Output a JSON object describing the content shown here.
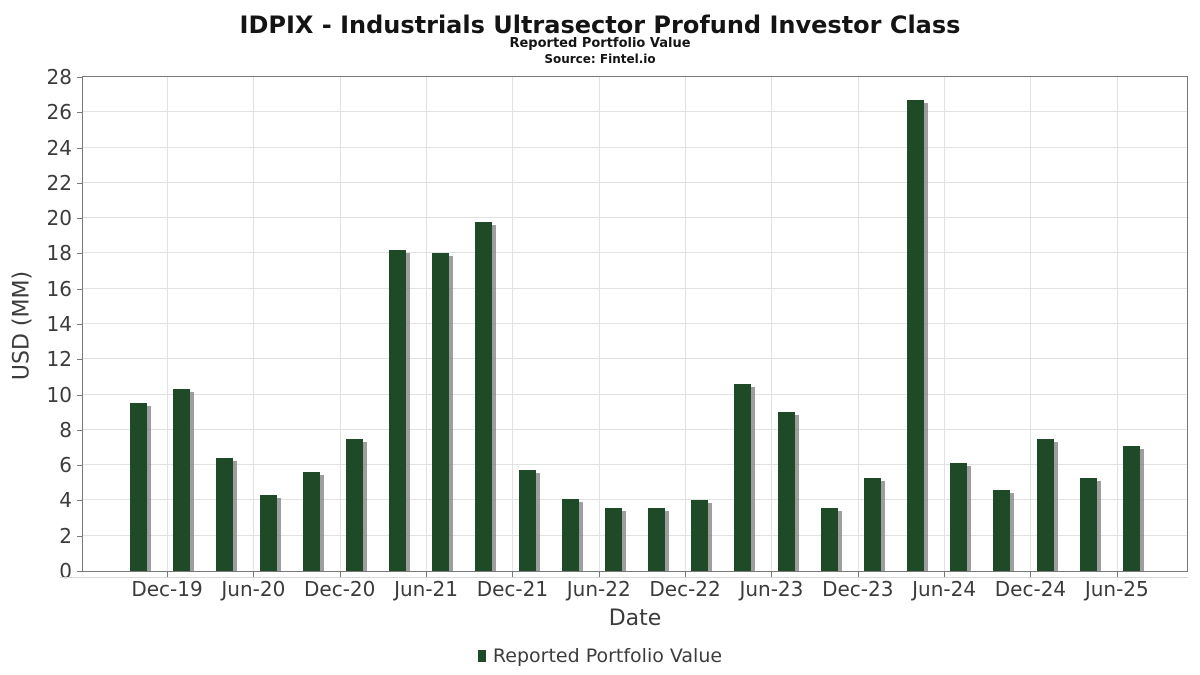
{
  "header": {
    "title": "IDPIX - Industrials Ultrasector Profund Investor Class",
    "subtitle": "Reported Portfolio Value",
    "source": "Source: Fintel.io"
  },
  "axes": {
    "xlabel": "Date",
    "ylabel": "USD (MM)"
  },
  "legend": {
    "label": "Reported Portfolio Value"
  },
  "colors": {
    "bar": "#1e4a27",
    "bar_shadow": "#7d7d7d",
    "grid": "#e2e2e2",
    "spine": "#787878",
    "tick_text": "#3c3c3c",
    "title_text": "#141414"
  },
  "chart_data": {
    "type": "bar",
    "title": "IDPIX - Industrials Ultrasector Profund Investor Class",
    "subtitle": "Reported Portfolio Value",
    "source": "Source: Fintel.io",
    "xlabel": "Date",
    "ylabel": "USD (MM)",
    "ylim": [
      0,
      28
    ],
    "ytick_step": 2,
    "grid": true,
    "legend_position": "bottom",
    "categories": [
      "Sep-19",
      "Dec-19",
      "Mar-20",
      "Jun-20",
      "Sep-20",
      "Dec-20",
      "Mar-21",
      "Jun-21",
      "Sep-21",
      "Dec-21",
      "Mar-22",
      "Jun-22",
      "Sep-22",
      "Dec-22",
      "Mar-23",
      "Jun-23",
      "Sep-23",
      "Dec-23",
      "Mar-24",
      "Jun-24",
      "Sep-24",
      "Dec-24",
      "Mar-25",
      "Jun-25"
    ],
    "series": [
      {
        "name": "Reported Portfolio Value",
        "values": [
          9.5,
          10.3,
          6.4,
          4.3,
          5.6,
          7.5,
          18.2,
          18.0,
          19.8,
          5.7,
          4.1,
          3.6,
          3.6,
          4.0,
          10.6,
          9.0,
          3.6,
          5.3,
          26.7,
          6.1,
          4.6,
          7.5,
          5.3,
          7.1
        ]
      }
    ],
    "x_tick_labels": [
      "Dec-19",
      "Jun-20",
      "Dec-20",
      "Jun-21",
      "Dec-21",
      "Jun-22",
      "Dec-22",
      "Jun-23",
      "Dec-23",
      "Jun-24",
      "Dec-24",
      "Jun-25"
    ],
    "y_tick_labels": [
      "0",
      "2",
      "4",
      "6",
      "8",
      "10",
      "12",
      "14",
      "16",
      "18",
      "20",
      "22",
      "24",
      "26",
      "28"
    ]
  }
}
